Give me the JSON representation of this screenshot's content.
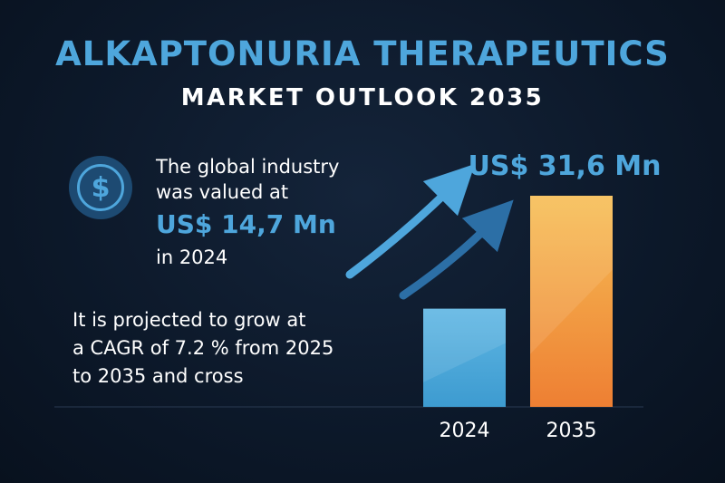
{
  "header": {
    "title": "ALKAPTONURIA THERAPEUTICS",
    "subtitle": "MARKET OUTLOOK 2035"
  },
  "icons": {
    "badge": "dollar-icon",
    "badge_symbol": "$"
  },
  "valued": {
    "line1": "The global industry",
    "line2": "was valued at",
    "amount": "US$ 14,7 Mn",
    "year": "in 2024"
  },
  "projection": {
    "line1": "It is projected to grow at",
    "line2": "a CAGR of 7.2 % from 2025",
    "line3": "to 2035 and cross"
  },
  "colors": {
    "background": "#0c1829",
    "accent_blue": "#4ea6dc",
    "bar_2024": "#4aa7d8",
    "bar_2035_top": "#f6be55",
    "bar_2035_bottom": "#ee7f33",
    "arrow_light": "#4ea6dc",
    "arrow_dark": "#2c6fa6"
  },
  "chart_data": {
    "type": "bar",
    "categories": [
      "2024",
      "2035"
    ],
    "values": [
      14.7,
      31.6
    ],
    "unit": "US$ Mn",
    "data_labels": [
      "",
      "US$ 31,6 Mn"
    ],
    "grid": false,
    "title": "",
    "xlabel": "",
    "ylabel": ""
  }
}
